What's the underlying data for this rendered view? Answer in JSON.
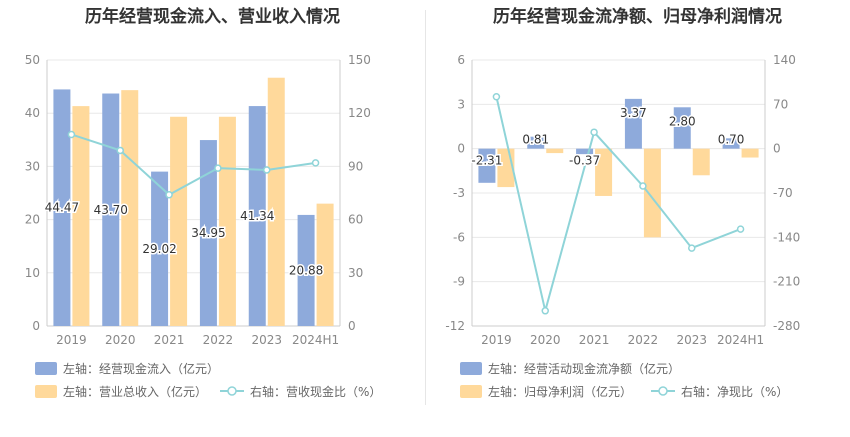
{
  "chart_data": [
    {
      "type": "bar",
      "title": "历年经营现金流入、营业收入情况",
      "categories": [
        "2019",
        "2020",
        "2021",
        "2022",
        "2023",
        "2024H1"
      ],
      "series": [
        {
          "name": "左轴：经营现金流入（亿元）",
          "axis": "left",
          "type": "bar",
          "color": "#8eaadb",
          "values": [
            44.47,
            43.7,
            29.02,
            34.95,
            41.34,
            20.88
          ],
          "labels": [
            "44.47",
            "43.70",
            "29.02",
            "34.95",
            "41.34",
            "20.88"
          ]
        },
        {
          "name": "左轴：营业总收入（亿元）",
          "axis": "right",
          "type": "bar",
          "color": "#ffd99b",
          "values": [
            124,
            133,
            118,
            118,
            140,
            69
          ]
        },
        {
          "name": "右轴：营收现金比（%）",
          "axis": "right",
          "type": "line",
          "color": "#8fd4d8",
          "values": [
            108,
            99,
            74,
            89,
            88,
            92
          ]
        }
      ],
      "yleft": {
        "min": 0,
        "max": 50,
        "ticks": [
          "0",
          "10",
          "20",
          "30",
          "40",
          "50"
        ]
      },
      "yright": {
        "min": 0,
        "max": 150,
        "ticks": [
          "0",
          "30",
          "60",
          "90",
          "120",
          "150"
        ]
      },
      "grid": true,
      "legend": "bottom"
    },
    {
      "type": "bar",
      "title": "历年经营现金流净额、归母净利润情况",
      "categories": [
        "2019",
        "2020",
        "2021",
        "2022",
        "2023",
        "2024H1"
      ],
      "series": [
        {
          "name": "左轴：经营活动现金流净额（亿元）",
          "axis": "left",
          "type": "bar",
          "color": "#8eaadb",
          "values": [
            -2.31,
            0.81,
            -0.37,
            3.37,
            2.8,
            0.7
          ],
          "labels": [
            "-2.31",
            "0.81",
            "-0.37",
            "3.37",
            "2.80",
            "0.70"
          ]
        },
        {
          "name": "左轴：归母净利润（亿元）",
          "axis": "left",
          "type": "bar",
          "color": "#ffd99b",
          "values": [
            -2.6,
            -0.3,
            -3.2,
            -6.0,
            -1.8,
            -0.6
          ]
        },
        {
          "name": "右轴：净现比（%）",
          "axis": "right",
          "type": "line",
          "color": "#8fd4d8",
          "values": [
            82,
            -256,
            26,
            -59,
            -157,
            -127
          ]
        }
      ],
      "yleft": {
        "min": -12,
        "max": 6,
        "ticks": [
          "-12",
          "-9",
          "-6",
          "-3",
          "0",
          "3",
          "6"
        ]
      },
      "yright": {
        "min": -280,
        "max": 140,
        "ticks": [
          "-280",
          "-210",
          "-140",
          "-70",
          "0",
          "70",
          "140"
        ]
      },
      "grid": true,
      "legend": "bottom"
    }
  ]
}
